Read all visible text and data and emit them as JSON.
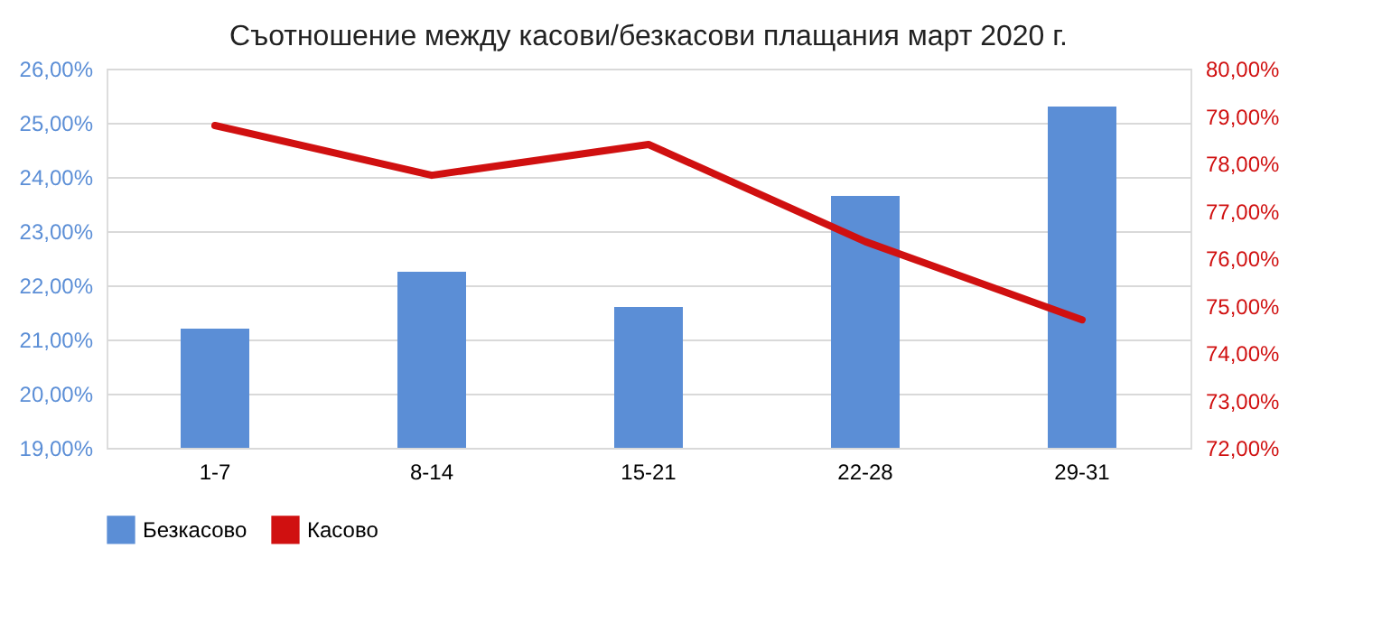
{
  "chart_data": {
    "type": "bar",
    "title": "Съотношение между касови/безкасови плащания март 2020 г.",
    "categories": [
      "1-7",
      "8-14",
      "15-21",
      "22-28",
      "29-31"
    ],
    "series": [
      {
        "name": "Безкасово",
        "color": "#5b8ed6",
        "values": [
          21.2,
          22.25,
          21.6,
          23.65,
          25.3
        ]
      },
      {
        "name": "Касово",
        "type": "line",
        "axis": "y2",
        "color": "#d01010",
        "values": [
          78.8,
          77.75,
          78.4,
          76.35,
          74.7
        ]
      }
    ],
    "ylim": [
      19,
      26
    ],
    "yticks": [
      {
        "value": 19,
        "label": "19,00%"
      },
      {
        "value": 20,
        "label": "20,00%"
      },
      {
        "value": 21,
        "label": "21,00%"
      },
      {
        "value": 22,
        "label": "22,00%"
      },
      {
        "value": 23,
        "label": "23,00%"
      },
      {
        "value": 24,
        "label": "24,00%"
      },
      {
        "value": 25,
        "label": "25,00%"
      },
      {
        "value": 26,
        "label": "26,00%"
      }
    ],
    "y2lim": [
      72,
      80
    ],
    "y2ticks": [
      {
        "value": 72,
        "label": "72,00%"
      },
      {
        "value": 73,
        "label": "73,00%"
      },
      {
        "value": 74,
        "label": "74,00%"
      },
      {
        "value": 75,
        "label": "75,00%"
      },
      {
        "value": 76,
        "label": "76,00%"
      },
      {
        "value": 77,
        "label": "77,00%"
      },
      {
        "value": 78,
        "label": "78,00%"
      },
      {
        "value": 79,
        "label": "79,00%"
      },
      {
        "value": 80,
        "label": "80,00%"
      }
    ],
    "grid": "y",
    "legend": "bottom"
  }
}
